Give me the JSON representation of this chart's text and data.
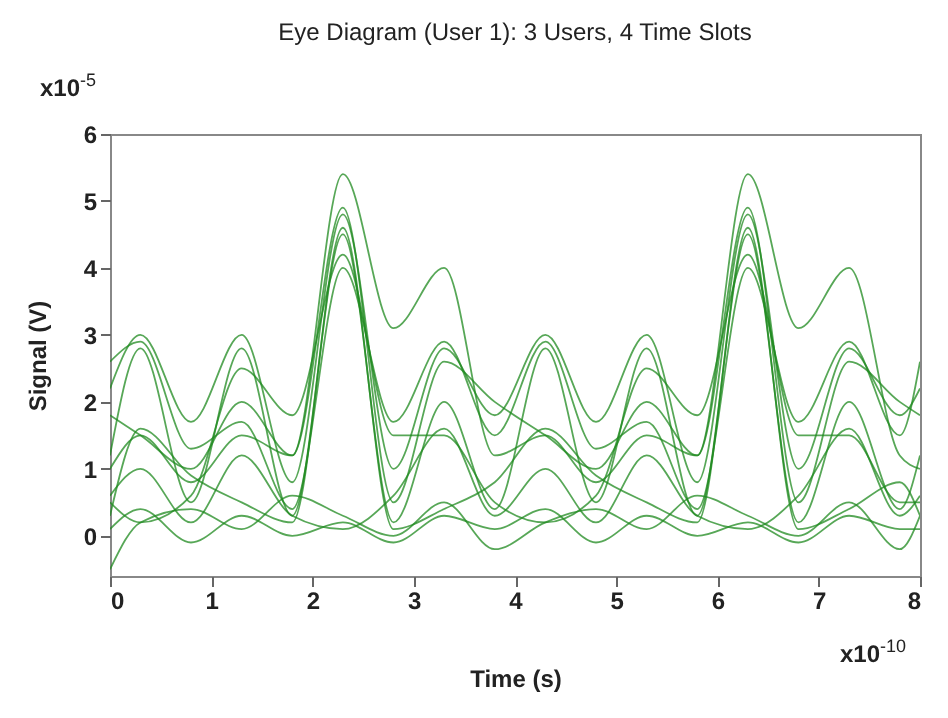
{
  "chart_data": {
    "type": "line",
    "title": "Eye Diagram (User 1): 3 Users, 4 Time Slots",
    "xlabel": "Time (s)",
    "ylabel": "Signal (V)",
    "annotations": [
      "x10$^{-5}$",
      "x10$^{-10}$"
    ],
    "xlim": [
      0,
      8
    ],
    "xticks": [
      0,
      1,
      2,
      3,
      4,
      5,
      6,
      7,
      8
    ],
    "ylim": [
      -0.6,
      6
    ],
    "yticks": [
      0,
      1,
      2,
      3,
      4,
      5,
      6
    ],
    "grid": false,
    "x": [
      0,
      0.3,
      0.8,
      1.3,
      1.8,
      2.3,
      2.8,
      3.3,
      3.8,
      4.3,
      4.8,
      5.3,
      5.8,
      6.3,
      6.8,
      7.3,
      7.8,
      8
    ],
    "series": [
      {
        "color": "#1f8a1f",
        "values": [
          1.0,
          1.5,
          0.8,
          1.5,
          1.2,
          5.4,
          3.1,
          4.0,
          1.2,
          1.5,
          0.8,
          1.5,
          1.2,
          5.4,
          3.1,
          4.0,
          1.2,
          1.0
        ]
      },
      {
        "color": "#1f8a1f",
        "values": [
          2.2,
          3.0,
          1.7,
          3.0,
          0.8,
          4.8,
          1.0,
          2.8,
          1.8,
          3.0,
          1.7,
          3.0,
          0.8,
          4.8,
          1.0,
          2.8,
          1.8,
          2.2
        ]
      },
      {
        "color": "#1f8a1f",
        "values": [
          1.2,
          2.8,
          0.5,
          2.8,
          0.3,
          4.5,
          0.2,
          2.0,
          0.4,
          2.8,
          0.5,
          2.8,
          0.3,
          4.5,
          0.2,
          2.0,
          0.4,
          1.2
        ]
      },
      {
        "color": "#1f8a1f",
        "values": [
          0.5,
          0.2,
          0.6,
          2.5,
          1.8,
          4.2,
          1.5,
          1.5,
          0.5,
          0.2,
          0.6,
          2.5,
          1.8,
          4.2,
          1.5,
          1.5,
          0.5,
          0.5
        ]
      },
      {
        "color": "#1f8a1f",
        "values": [
          0.1,
          0.4,
          -0.1,
          0.3,
          0.0,
          0.2,
          -0.1,
          0.3,
          0.1,
          0.4,
          -0.1,
          0.3,
          0.0,
          0.2,
          -0.1,
          0.3,
          0.1,
          0.1
        ]
      },
      {
        "color": "#1f8a1f",
        "values": [
          0.6,
          1.0,
          0.2,
          1.2,
          0.3,
          0.1,
          0.6,
          1.6,
          0.3,
          1.0,
          0.2,
          1.2,
          0.3,
          0.1,
          0.6,
          1.6,
          0.3,
          0.6
        ]
      },
      {
        "color": "#1f8a1f",
        "values": [
          1.8,
          1.5,
          1.0,
          2.0,
          1.2,
          4.9,
          0.5,
          2.6,
          2.0,
          1.5,
          1.0,
          2.0,
          1.2,
          4.9,
          0.5,
          2.6,
          2.0,
          1.8
        ]
      },
      {
        "color": "#1f8a1f",
        "values": [
          -0.5,
          0.2,
          0.4,
          0.1,
          0.6,
          0.3,
          0.0,
          0.5,
          -0.2,
          0.2,
          0.4,
          0.1,
          0.6,
          0.3,
          0.0,
          0.5,
          -0.2,
          0.3
        ]
      },
      {
        "color": "#1f8a1f",
        "values": [
          2.6,
          2.9,
          1.3,
          1.7,
          0.4,
          4.0,
          1.7,
          2.9,
          1.5,
          2.9,
          1.3,
          1.7,
          0.4,
          4.0,
          1.7,
          2.9,
          1.5,
          2.6
        ]
      },
      {
        "color": "#1f8a1f",
        "values": [
          0.3,
          1.6,
          0.9,
          0.5,
          0.2,
          4.6,
          0.1,
          0.4,
          0.8,
          1.6,
          0.9,
          0.5,
          0.2,
          4.6,
          0.1,
          0.4,
          0.8,
          0.3
        ]
      }
    ]
  }
}
